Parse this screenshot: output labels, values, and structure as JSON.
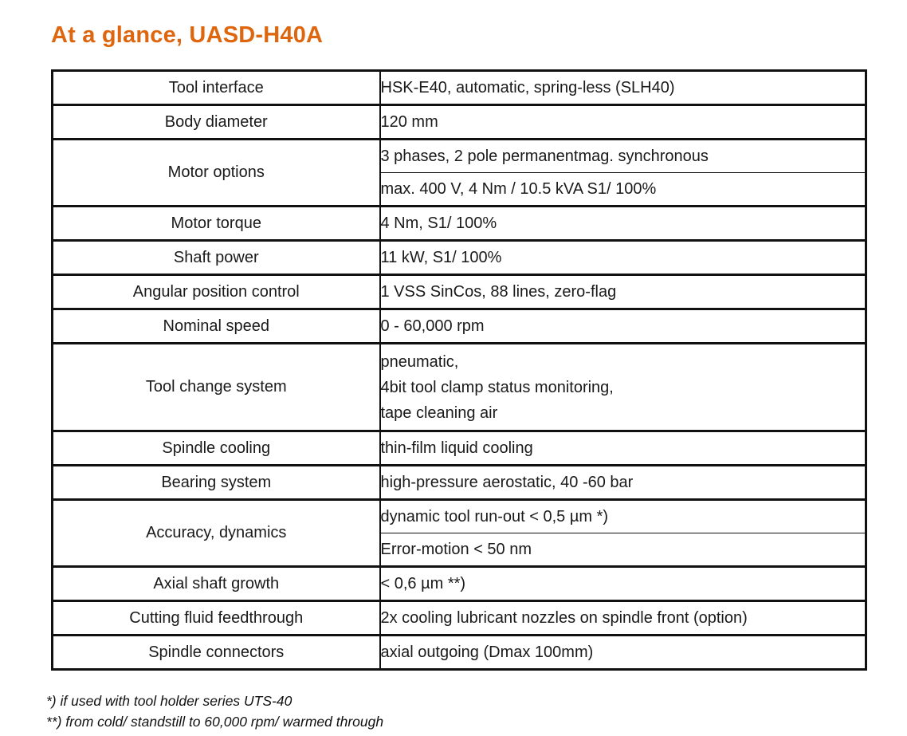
{
  "page": {
    "title": "At a glance, UASD-H40A",
    "title_color": "#dd660f"
  },
  "table": {
    "rows": [
      {
        "label": "Tool interface",
        "values": [
          "HSK-E40, automatic, spring-less (SLH40)"
        ]
      },
      {
        "label": "Body diameter",
        "values": [
          "120 mm"
        ]
      },
      {
        "label": "Motor options",
        "values": [
          "3 phases, 2 pole permanentmag. synchronous",
          "max. 400 V, 4 Nm / 10.5 kVA S1/ 100%"
        ]
      },
      {
        "label": "Motor torque",
        "values": [
          "4 Nm, S1/ 100%"
        ]
      },
      {
        "label": "Shaft power",
        "values": [
          "11 kW, S1/ 100%"
        ]
      },
      {
        "label": "Angular position control",
        "values": [
          "1 VSS SinCos, 88 lines, zero-flag"
        ]
      },
      {
        "label": "Nominal speed",
        "values": [
          "0 - 60,000 rpm"
        ]
      },
      {
        "label": "Tool change system",
        "values": [
          "pneumatic,\n4bit tool clamp status monitoring,\ntape cleaning air"
        ]
      },
      {
        "label": "Spindle cooling",
        "values": [
          "thin-film liquid cooling"
        ]
      },
      {
        "label": "Bearing system",
        "values": [
          "high-pressure aerostatic, 40 -60 bar"
        ]
      },
      {
        "label": "Accuracy, dynamics",
        "values": [
          "dynamic tool run-out < 0,5 µm *)",
          "Error-motion < 50 nm"
        ]
      },
      {
        "label": "Axial shaft growth",
        "values": [
          "< 0,6 µm **)"
        ]
      },
      {
        "label": "Cutting fluid feedthrough",
        "values": [
          "2x cooling lubricant nozzles on spindle front (option)"
        ]
      },
      {
        "label": "Spindle connectors",
        "values": [
          "axial outgoing (Dmax 100mm)"
        ]
      }
    ]
  },
  "footnotes": [
    "*) if used with tool holder series UTS-40",
    "**) from cold/ standstill to 60,000 rpm/ warmed through"
  ]
}
